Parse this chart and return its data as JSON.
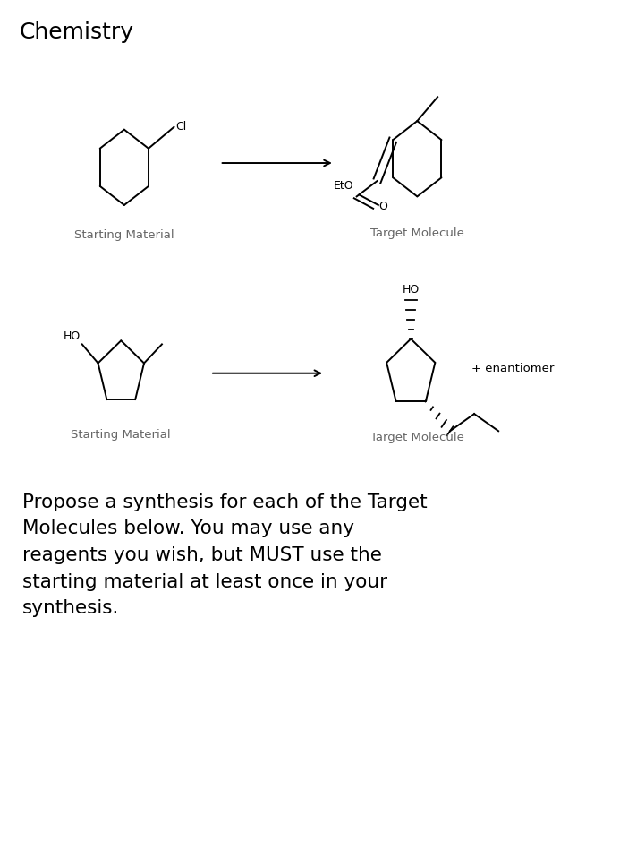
{
  "title": "Chemistry",
  "title_fontsize": 18,
  "background_color": "#ffffff",
  "text_color": "#000000",
  "label_color": "#666666",
  "body_text": "Propose a synthesis for each of the Target\nMolecules below. You may use any\nreagents you wish, but MUST use the\nstarting material at least once in your\nsynthesis.",
  "body_fontsize": 15.5,
  "sm1_label": "Starting Material",
  "sm2_label": "Starting Material",
  "tm1_label": "Target Molecule",
  "tm2_label": "Target Molecule",
  "label_fontsize": 9.5,
  "enantiomer_text": "+ enantiomer",
  "enantiomer_fontsize": 9.5,
  "line_width": 1.4
}
